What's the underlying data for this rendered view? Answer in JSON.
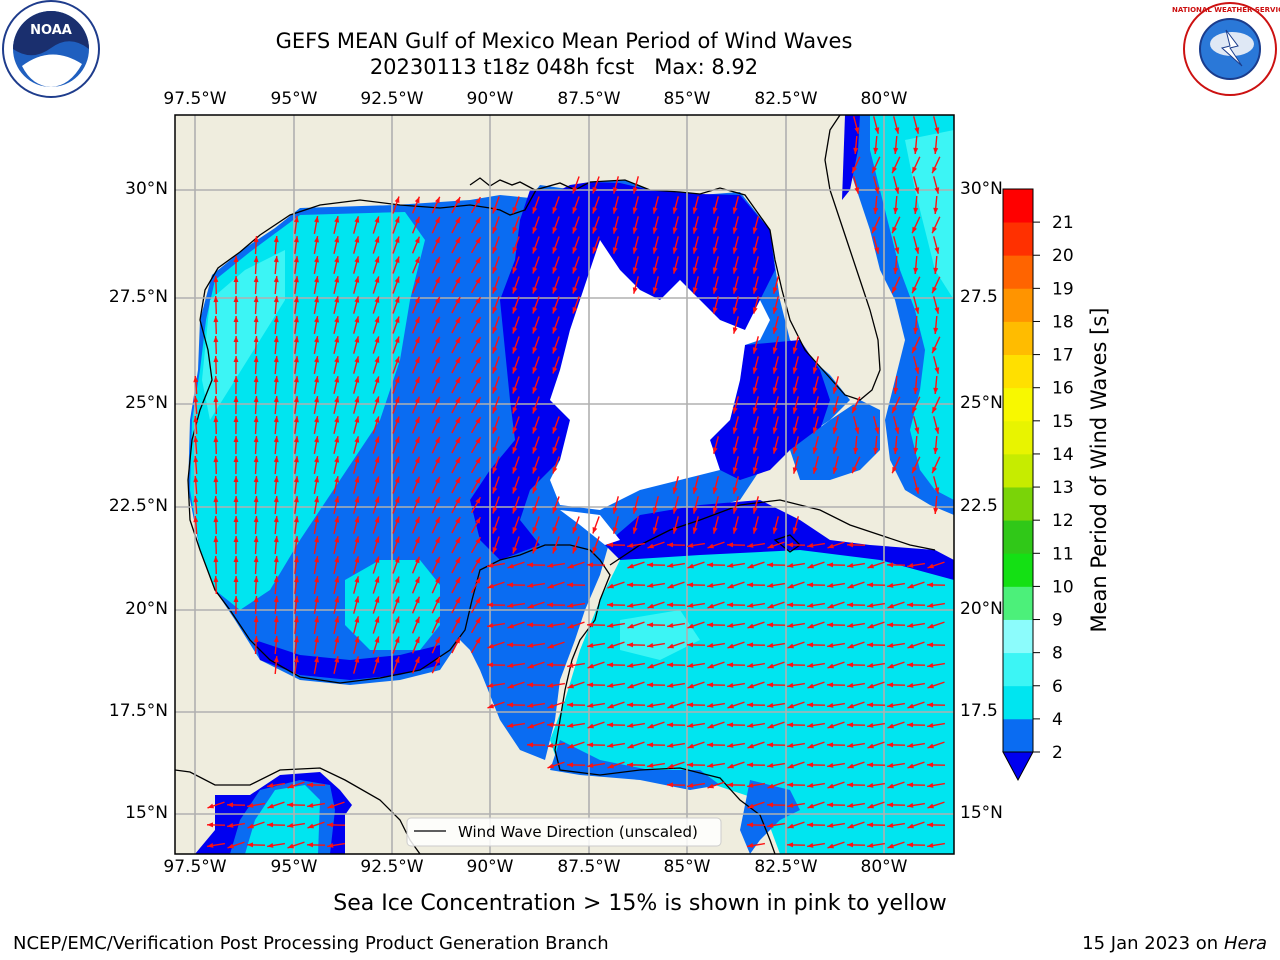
{
  "title": {
    "line1": "GEFS MEAN Gulf of Mexico Mean Period of Wind Waves",
    "line2": "20230113 t18z 048h fcst   Max: 8.92"
  },
  "logos": {
    "noaa": "NOAA",
    "nws": "NATIONAL WEATHER SERVICE"
  },
  "axes": {
    "lon_ticks": [
      "97.5°W",
      "95°W",
      "92.5°W",
      "90°W",
      "87.5°W",
      "85°W",
      "82.5°W",
      "80°W"
    ],
    "lat_ticks": [
      "30°N",
      "27.5°N",
      "25°N",
      "22.5°N",
      "20°N",
      "17.5°N",
      "15°N"
    ],
    "lat_ticks_right": [
      "30°N",
      "27.5",
      "25°N",
      "22.5",
      "20°N",
      "17.5",
      "15°N"
    ]
  },
  "legend": {
    "label": "Wind Wave Direction (unscaled)"
  },
  "colorbar": {
    "label": "Mean Period of Wind Waves [s]",
    "ticks": [
      "2",
      "4",
      "6",
      "8",
      "9",
      "10",
      "11",
      "12",
      "13",
      "14",
      "15",
      "16",
      "17",
      "18",
      "19",
      "20",
      "21"
    ],
    "colors": [
      "#0a6cf2",
      "#00e5f0",
      "#3cf5f5",
      "#8cfcfc",
      "#4cf07a",
      "#14e014",
      "#30c818",
      "#7ad408",
      "#c6ec00",
      "#e8f400",
      "#f8f800",
      "#ffe000",
      "#ffbc00",
      "#ff9400",
      "#ff6400",
      "#ff3000",
      "#ff0000"
    ],
    "under_color": "#0000f0"
  },
  "note": "Sea Ice Concentration > 15% is shown in pink to yellow",
  "footer": {
    "left": "NCEP/EMC/Verification Post Processing Product Generation Branch",
    "right_date": "15 Jan 2023 on ",
    "right_machine": "Hera"
  }
}
